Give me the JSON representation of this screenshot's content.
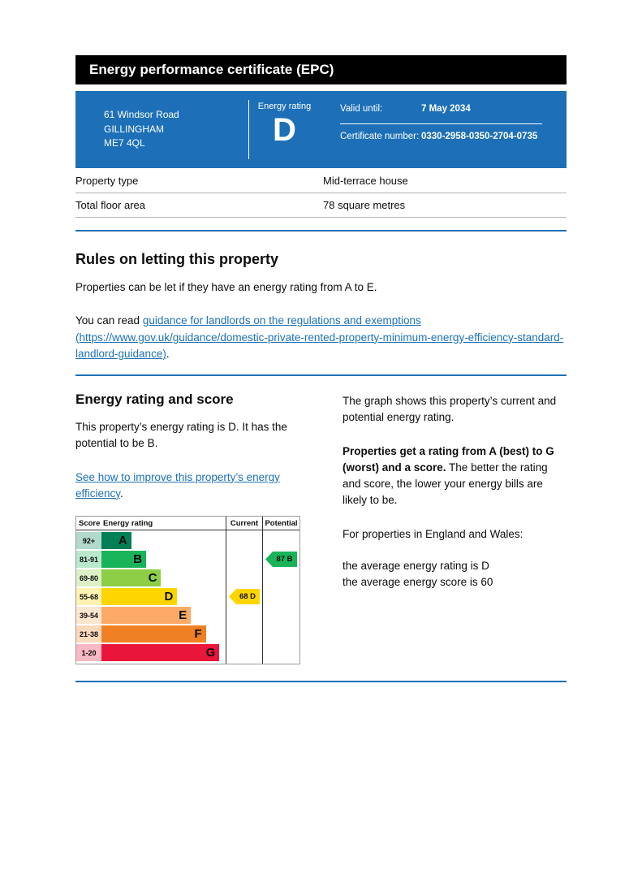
{
  "header": {
    "title": "Energy performance certificate (EPC)"
  },
  "banner": {
    "address_line1": "61 Windsor Road",
    "address_line2": "GILLINGHAM",
    "address_line3": "ME7 4QL",
    "energy_rating_label": "Energy rating",
    "energy_rating_letter": "D",
    "valid_until_label": "Valid until:",
    "valid_until_value": "7 May 2034",
    "certificate_number_label": "Certificate number:",
    "certificate_number_value": "0330-2958-0350-2704-0735"
  },
  "property_details": {
    "rows": [
      {
        "label": "Property type",
        "value": "Mid-terrace house"
      },
      {
        "label": "Total floor area",
        "value": "78 square metres"
      }
    ]
  },
  "letting_section": {
    "heading": "Rules on letting this property",
    "paragraph1": "Properties can be let if they have an energy rating from A to E.",
    "paragraph2_prefix": "You can read ",
    "guidance_link_text": "guidance for landlords on the regulations and exemptions (https://www.gov.uk/guidance/domestic-private-rented-property-minimum-energy-efficiency-standard-landlord-guidance)",
    "paragraph2_suffix": "."
  },
  "rating_section": {
    "heading": "Energy rating and score",
    "paragraph1": "This property’s energy rating is D. It has the potential to be B.",
    "improve_link_text": "See how to improve this property’s energy efficiency",
    "improve_link_suffix": "."
  },
  "graph_explainer": {
    "paragraph1": "The graph shows this property’s current and potential energy rating.",
    "paragraph2_bold": "Properties get a rating from A (best) to G (worst) and a score.",
    "paragraph2_rest": " The better the rating and score, the lower your energy bills are likely to be.",
    "paragraph3": "For properties in England and Wales:",
    "average_rating_line": "the average energy rating is D",
    "average_score_line": "the average energy score is 60"
  },
  "theme": {
    "govuk_blue": "#1d70b8",
    "header_black": "#000000",
    "table_border_grey": "#b1b4b6"
  },
  "chart_data": {
    "type": "bar",
    "title": "Energy rating and score",
    "columns": [
      "Score",
      "Energy rating",
      "Current",
      "Potential"
    ],
    "bands": [
      {
        "score": "92+",
        "letter": "A",
        "color": "#008054",
        "light_color": "#b2d9cc",
        "width_pct": 24
      },
      {
        "score": "81-91",
        "letter": "B",
        "color": "#19b459",
        "light_color": "#bae8cd",
        "width_pct": 36
      },
      {
        "score": "69-80",
        "letter": "C",
        "color": "#8dce46",
        "light_color": "#ddf0c7",
        "width_pct": 48
      },
      {
        "score": "55-68",
        "letter": "D",
        "color": "#ffd500",
        "light_color": "#fff2b2",
        "width_pct": 61
      },
      {
        "score": "39-54",
        "letter": "E",
        "color": "#fcaa65",
        "light_color": "#fee6d0",
        "width_pct": 72
      },
      {
        "score": "21-38",
        "letter": "F",
        "color": "#ef8023",
        "light_color": "#fad9bd",
        "width_pct": 84
      },
      {
        "score": "1-20",
        "letter": "G",
        "color": "#e9153b",
        "light_color": "#f8b9c4",
        "width_pct": 95
      }
    ],
    "current": {
      "score": 68,
      "letter": "D",
      "label": "68 D",
      "color": "#ffd500",
      "band_index": 3
    },
    "potential": {
      "score": 87,
      "letter": "B",
      "label": "87 B",
      "color": "#19b459",
      "band_index": 1
    }
  }
}
